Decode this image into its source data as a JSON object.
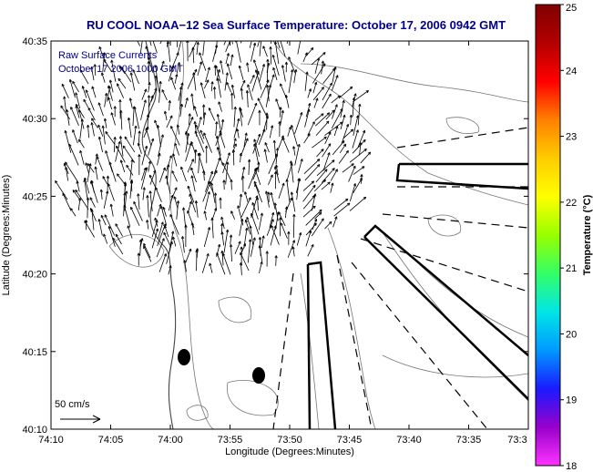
{
  "title": "RU COOL  NOAA−12  Sea Surface Temperature:  October 17, 2006 0942 GMT",
  "annotation": {
    "line1": "Raw Surface Currents",
    "line2": "October 17 2006 1000 GMT"
  },
  "scale_label": "50 cm/s",
  "axes": {
    "xlabel": "Longitude (Degrees:Minutes)",
    "ylabel": "Latitude (Degrees:Minutes)",
    "xticks": [
      "74:10",
      "74:05",
      "74:00",
      "73:55",
      "73:50",
      "73:45",
      "73:40",
      "73:35",
      "73:3"
    ],
    "yticks": [
      "40:35",
      "40:30",
      "40:25",
      "40:20",
      "40:15",
      "40:10"
    ]
  },
  "colorbar": {
    "label": "Temperature (°C)",
    "ticks": [
      "25",
      "24",
      "23",
      "22",
      "21",
      "20",
      "19",
      "18"
    ],
    "min": 18,
    "max": 25,
    "colors": [
      "#ff33ff",
      "#9900cc",
      "#1a1aff",
      "#0099ff",
      "#00e6e6",
      "#33ff66",
      "#99ff00",
      "#ffff00",
      "#ffcc00",
      "#ff8000",
      "#ff0000",
      "#b30000",
      "#800000"
    ]
  },
  "chart_data": {
    "type": "map",
    "title": "RU COOL  NOAA−12  Sea Surface Temperature:  October 17, 2006 0942 GMT",
    "xlabel": "Longitude (Degrees:Minutes)",
    "ylabel": "Latitude (Degrees:Minutes)",
    "xlim": [
      "74:10",
      "73:30"
    ],
    "ylim": [
      "40:10",
      "40:35"
    ],
    "colorbar_range": [
      18,
      25
    ],
    "colorbar_units": "°C",
    "vector_scale": "50 cm/s",
    "buoys": [
      {
        "lon": "73:59",
        "lat": "40:14.5"
      },
      {
        "lon": "73:52.5",
        "lat": "40:13.5"
      }
    ]
  }
}
